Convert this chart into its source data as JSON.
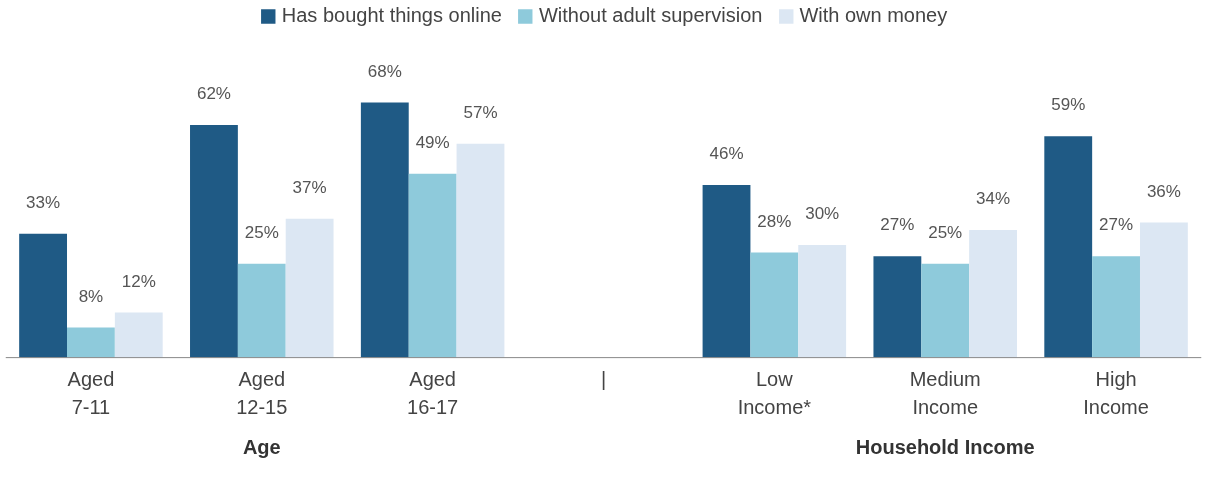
{
  "chart_data": {
    "type": "bar",
    "categories": [
      "Aged\n7-11",
      "Aged\n12-15",
      "Aged\n16-17",
      "|",
      "Low\nIncome*",
      "Medium\nIncome",
      "High\nIncome"
    ],
    "series": [
      {
        "name": "Has bought things online",
        "color": "#1f5a85",
        "values": [
          33,
          62,
          68,
          null,
          46,
          27,
          59
        ],
        "value_labels": [
          "33%",
          "62%",
          "68%",
          null,
          "46%",
          "27%",
          "59%"
        ]
      },
      {
        "name": "Without adult supervision",
        "color": "#8ecadb",
        "values": [
          8,
          25,
          49,
          null,
          28,
          25,
          27
        ],
        "value_labels": [
          "8%",
          "25%",
          "49%",
          null,
          "28%",
          "25%",
          "27%"
        ]
      },
      {
        "name": "With own money",
        "color": "#dce7f3",
        "values": [
          12,
          37,
          57,
          null,
          30,
          34,
          36
        ],
        "value_labels": [
          "12%",
          "37%",
          "57%",
          null,
          "30%",
          "34%",
          "36%"
        ]
      }
    ],
    "legend": "top",
    "annotations": [
      "Age",
      "Household Income"
    ]
  }
}
